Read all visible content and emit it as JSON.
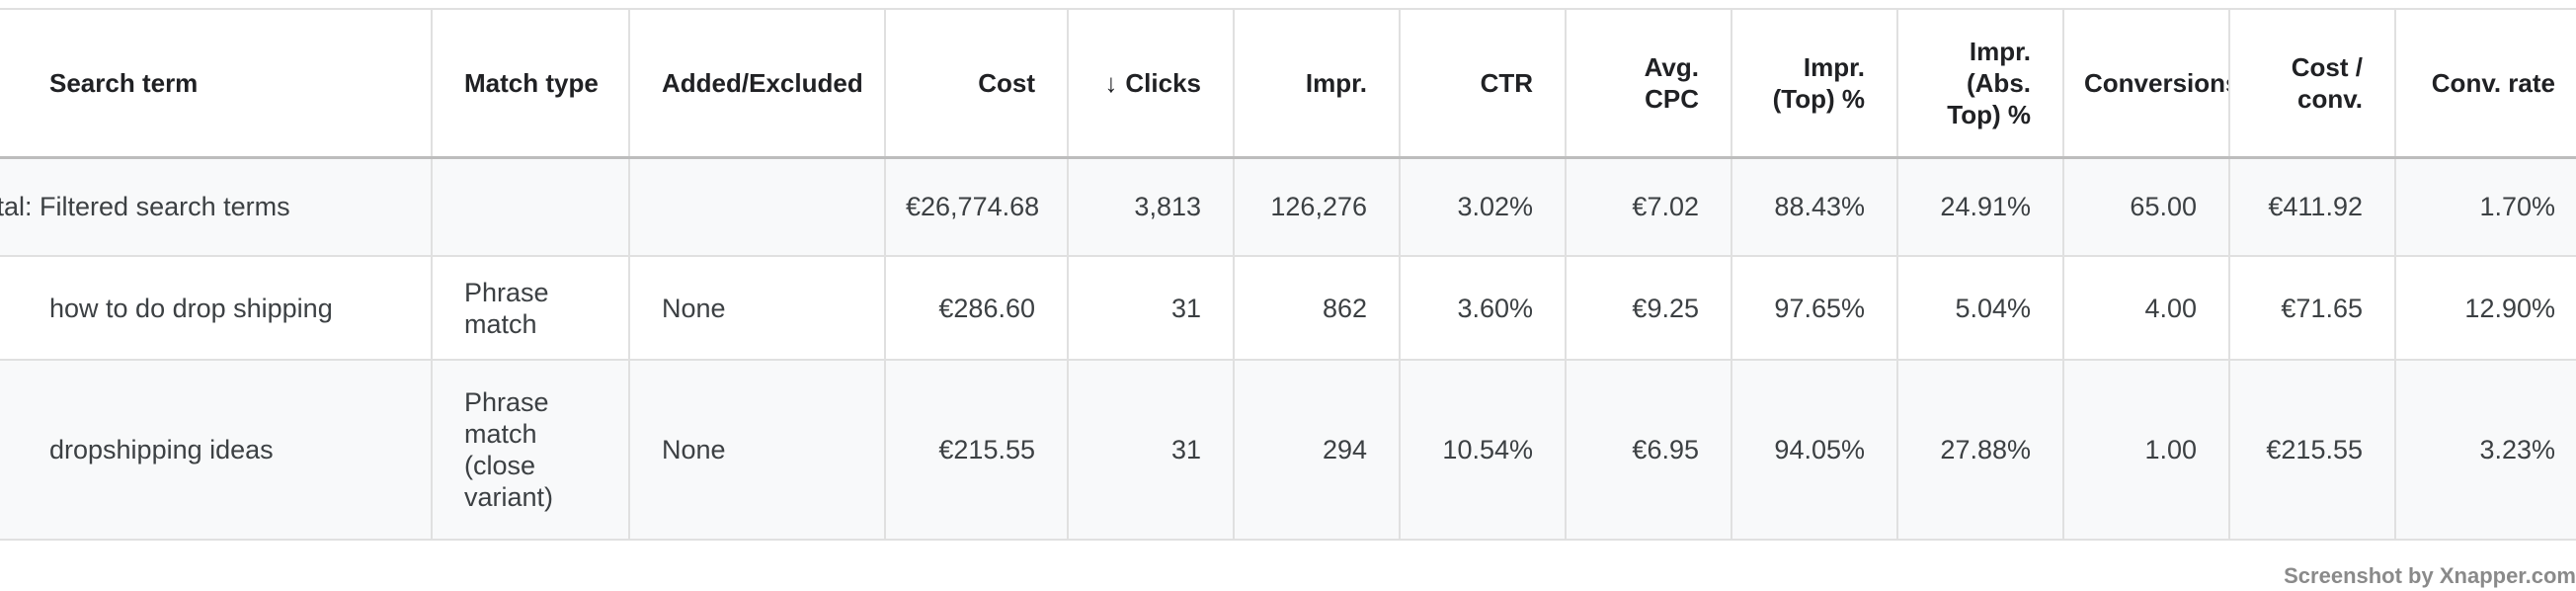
{
  "table": {
    "headers": [
      "Search term",
      "Match type",
      "Added/Excluded",
      "Cost",
      "Clicks",
      "Impr.",
      "CTR",
      "Avg. CPC",
      "Impr. (Top) %",
      "Impr. (Abs. Top) %",
      "Conversions",
      "Cost / conv.",
      "Conv. rate"
    ],
    "rows": [
      [
        "Total: Filtered search terms",
        null,
        null,
        "€26,774.68",
        "3,813",
        "126,276",
        "3.02%",
        "€7.02",
        "88.43%",
        "24.91%",
        "65.00",
        "€411.92",
        "1.70%"
      ],
      [
        "how to do drop shipping",
        "Phrase match",
        "None",
        "€286.60",
        "31",
        "862",
        "3.60%",
        "€9.25",
        "97.65%",
        "5.04%",
        "4.00",
        "€71.65",
        "12.90%"
      ],
      [
        "dropshipping ideas",
        "Phrase match (close variant)",
        "None",
        "€215.55",
        "31",
        "294",
        "10.54%",
        "€6.95",
        "94.05%",
        "27.88%",
        "1.00",
        "€215.55",
        "3.23%"
      ]
    ]
  },
  "watermark": "Screenshot by Xnapper.com"
}
